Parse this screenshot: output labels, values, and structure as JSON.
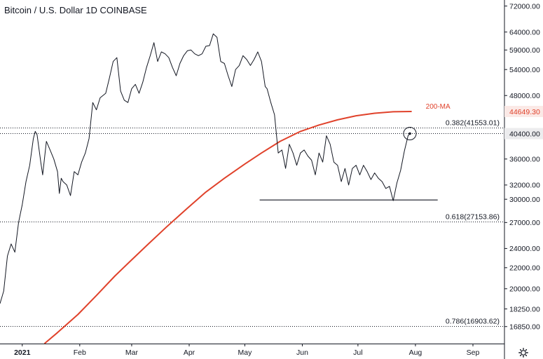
{
  "chart_data": {
    "type": "line",
    "title": "Bitcoin / U.S. Dollar  1D  COINBASE",
    "y_scale": "log",
    "ylim": [
      15600,
      74000
    ],
    "y_ticks": [
      "72000.00",
      "64000.00",
      "59000.00",
      "54000.00",
      "48000.00",
      "40400.00",
      "36000.00",
      "32000.00",
      "30000.00",
      "27000.00",
      "24000.00",
      "22000.00",
      "20000.00",
      "18250.00",
      "16850.00"
    ],
    "x_ticks": [
      {
        "label": "2021",
        "date": "2021-01-01",
        "bold": true
      },
      {
        "label": "Feb",
        "date": "2021-02-01"
      },
      {
        "label": "Mar",
        "date": "2021-03-01"
      },
      {
        "label": "Apr",
        "date": "2021-04-01"
      },
      {
        "label": "May",
        "date": "2021-05-01"
      },
      {
        "label": "Jun",
        "date": "2021-06-01"
      },
      {
        "label": "Jul",
        "date": "2021-07-01"
      },
      {
        "label": "Aug",
        "date": "2021-08-01"
      },
      {
        "label": "Sep",
        "date": "2021-09-01"
      }
    ],
    "xlim": [
      "2020-12-20",
      "2021-09-18"
    ],
    "series": [
      {
        "role": "price",
        "color": "#131722",
        "points": [
          [
            "2020-12-20",
            18700
          ],
          [
            "2020-12-22",
            19800
          ],
          [
            "2020-12-24",
            23200
          ],
          [
            "2020-12-26",
            24500
          ],
          [
            "2020-12-28",
            23600
          ],
          [
            "2020-12-30",
            27000
          ],
          [
            "2021-01-01",
            29300
          ],
          [
            "2021-01-03",
            32500
          ],
          [
            "2021-01-05",
            35000
          ],
          [
            "2021-01-07",
            39500
          ],
          [
            "2021-01-08",
            40800
          ],
          [
            "2021-01-09",
            40200
          ],
          [
            "2021-01-11",
            35500
          ],
          [
            "2021-01-12",
            33500
          ],
          [
            "2021-01-14",
            39000
          ],
          [
            "2021-01-16",
            37500
          ],
          [
            "2021-01-18",
            36000
          ],
          [
            "2021-01-20",
            34000
          ],
          [
            "2021-01-21",
            30800
          ],
          [
            "2021-01-22",
            33000
          ],
          [
            "2021-01-23",
            32500
          ],
          [
            "2021-01-25",
            32000
          ],
          [
            "2021-01-27",
            30500
          ],
          [
            "2021-01-29",
            34000
          ],
          [
            "2021-01-31",
            33500
          ],
          [
            "2021-02-02",
            35500
          ],
          [
            "2021-02-04",
            37000
          ],
          [
            "2021-02-06",
            39500
          ],
          [
            "2021-02-08",
            46500
          ],
          [
            "2021-02-10",
            45000
          ],
          [
            "2021-02-12",
            47500
          ],
          [
            "2021-02-15",
            48500
          ],
          [
            "2021-02-17",
            52000
          ],
          [
            "2021-02-19",
            56000
          ],
          [
            "2021-02-21",
            57000
          ],
          [
            "2021-02-23",
            49000
          ],
          [
            "2021-02-25",
            47000
          ],
          [
            "2021-02-27",
            46500
          ],
          [
            "2021-03-01",
            49500
          ],
          [
            "2021-03-03",
            50500
          ],
          [
            "2021-03-05",
            48500
          ],
          [
            "2021-03-07",
            51000
          ],
          [
            "2021-03-09",
            54500
          ],
          [
            "2021-03-11",
            57500
          ],
          [
            "2021-03-13",
            61000
          ],
          [
            "2021-03-15",
            56000
          ],
          [
            "2021-03-17",
            58500
          ],
          [
            "2021-03-19",
            58000
          ],
          [
            "2021-03-21",
            57000
          ],
          [
            "2021-03-23",
            54500
          ],
          [
            "2021-03-25",
            52500
          ],
          [
            "2021-03-27",
            55500
          ],
          [
            "2021-03-29",
            57500
          ],
          [
            "2021-03-31",
            58800
          ],
          [
            "2021-04-02",
            59000
          ],
          [
            "2021-04-04",
            58000
          ],
          [
            "2021-04-06",
            57500
          ],
          [
            "2021-04-08",
            58000
          ],
          [
            "2021-04-10",
            60000
          ],
          [
            "2021-04-12",
            60200
          ],
          [
            "2021-04-14",
            63500
          ],
          [
            "2021-04-16",
            62500
          ],
          [
            "2021-04-18",
            56000
          ],
          [
            "2021-04-20",
            55500
          ],
          [
            "2021-04-22",
            52500
          ],
          [
            "2021-04-24",
            50000
          ],
          [
            "2021-04-26",
            54000
          ],
          [
            "2021-04-28",
            55000
          ],
          [
            "2021-04-30",
            57500
          ],
          [
            "2021-05-02",
            56500
          ],
          [
            "2021-05-04",
            55000
          ],
          [
            "2021-05-06",
            56500
          ],
          [
            "2021-05-08",
            58500
          ],
          [
            "2021-05-10",
            56000
          ],
          [
            "2021-05-12",
            50000
          ],
          [
            "2021-05-13",
            49500
          ],
          [
            "2021-05-15",
            46500
          ],
          [
            "2021-05-17",
            44000
          ],
          [
            "2021-05-19",
            37000
          ],
          [
            "2021-05-21",
            37500
          ],
          [
            "2021-05-23",
            34500
          ],
          [
            "2021-05-25",
            38500
          ],
          [
            "2021-05-27",
            37000
          ],
          [
            "2021-05-29",
            35000
          ],
          [
            "2021-05-31",
            37000
          ],
          [
            "2021-06-02",
            37500
          ],
          [
            "2021-06-04",
            36500
          ],
          [
            "2021-06-06",
            35800
          ],
          [
            "2021-06-08",
            33500
          ],
          [
            "2021-06-10",
            37000
          ],
          [
            "2021-06-12",
            35500
          ],
          [
            "2021-06-14",
            40000
          ],
          [
            "2021-06-16",
            38500
          ],
          [
            "2021-06-18",
            35500
          ],
          [
            "2021-06-20",
            35000
          ],
          [
            "2021-06-22",
            32500
          ],
          [
            "2021-06-24",
            34500
          ],
          [
            "2021-06-26",
            32000
          ],
          [
            "2021-06-28",
            34500
          ],
          [
            "2021-06-30",
            35000
          ],
          [
            "2021-07-02",
            33500
          ],
          [
            "2021-07-04",
            35000
          ],
          [
            "2021-07-06",
            34000
          ],
          [
            "2021-07-08",
            32800
          ],
          [
            "2021-07-10",
            33800
          ],
          [
            "2021-07-12",
            33000
          ],
          [
            "2021-07-14",
            32500
          ],
          [
            "2021-07-16",
            31500
          ],
          [
            "2021-07-18",
            31800
          ],
          [
            "2021-07-20",
            29800
          ],
          [
            "2021-07-22",
            32300
          ],
          [
            "2021-07-24",
            34200
          ],
          [
            "2021-07-26",
            37300
          ],
          [
            "2021-07-28",
            40000
          ],
          [
            "2021-07-29",
            40400
          ]
        ]
      },
      {
        "role": "moving-average",
        "label": "200-MA",
        "color": "#e0422b",
        "points": [
          [
            "2021-01-13",
            15600
          ],
          [
            "2021-01-20",
            16400
          ],
          [
            "2021-01-31",
            17800
          ],
          [
            "2021-02-10",
            19400
          ],
          [
            "2021-02-20",
            21200
          ],
          [
            "2021-03-01",
            22800
          ],
          [
            "2021-03-10",
            24500
          ],
          [
            "2021-03-20",
            26500
          ],
          [
            "2021-03-31",
            28800
          ],
          [
            "2021-04-10",
            31000
          ],
          [
            "2021-04-20",
            33000
          ],
          [
            "2021-05-01",
            35200
          ],
          [
            "2021-05-10",
            37000
          ],
          [
            "2021-05-20",
            39000
          ],
          [
            "2021-05-31",
            40800
          ],
          [
            "2021-06-10",
            42000
          ],
          [
            "2021-06-20",
            43000
          ],
          [
            "2021-06-30",
            43800
          ],
          [
            "2021-07-10",
            44300
          ],
          [
            "2021-07-20",
            44600
          ],
          [
            "2021-07-30",
            44649.3
          ]
        ]
      }
    ],
    "fib_levels": [
      {
        "label": "0.382(41553.01)",
        "value": 41553.01
      },
      {
        "label": "0.618(27153.86)",
        "value": 27153.86
      },
      {
        "label": "0.786(16903.62)",
        "value": 16903.62
      }
    ],
    "support_line": {
      "value": 29900,
      "from": "2021-05-09",
      "to": "2021-08-13"
    },
    "last_price": {
      "label": "40400.00",
      "value": 40400,
      "date": "2021-07-29"
    },
    "ma_badge": {
      "label": "44649.30",
      "value": 44649.3
    },
    "colors": {
      "price": "#131722",
      "ma": "#e0422b",
      "grid": "#131722",
      "badge_dark": "#131722",
      "badge_red": "#e0422b"
    }
  }
}
